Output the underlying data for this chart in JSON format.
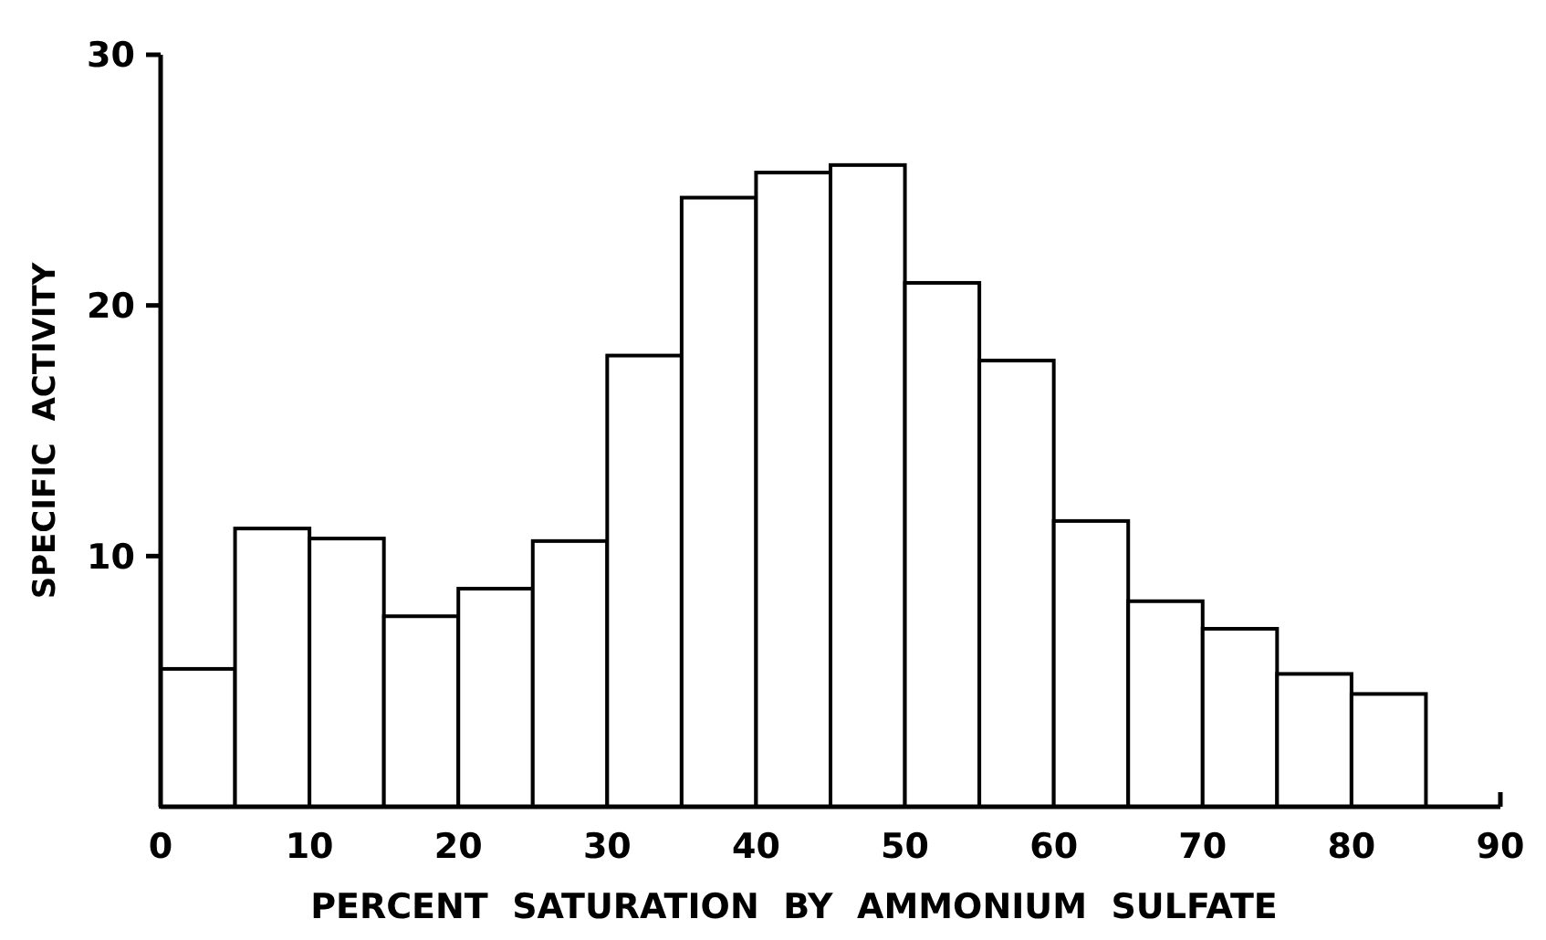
{
  "chart_data": {
    "type": "histogram",
    "xlabel": "PERCENT  SATURATION  BY  AMMONIUM  SULFATE",
    "ylabel": "SPECIFIC  ACTIVITY",
    "bins": [
      0,
      5,
      10,
      15,
      20,
      25,
      30,
      35,
      40,
      45,
      50,
      55,
      60,
      65,
      70,
      75,
      80,
      85
    ],
    "values": [
      5.5,
      11.1,
      10.7,
      7.6,
      8.7,
      10.6,
      18.0,
      24.3,
      25.3,
      25.6,
      20.9,
      17.8,
      11.4,
      8.2,
      7.1,
      5.3,
      4.5
    ],
    "color": "#ffffff",
    "xlim": [
      0,
      90
    ],
    "xticks": [
      0,
      10,
      20,
      30,
      40,
      50,
      60,
      70,
      80,
      90
    ],
    "ylim": [
      0,
      30
    ],
    "yticks": [
      10,
      20,
      30
    ],
    "grid": false
  }
}
